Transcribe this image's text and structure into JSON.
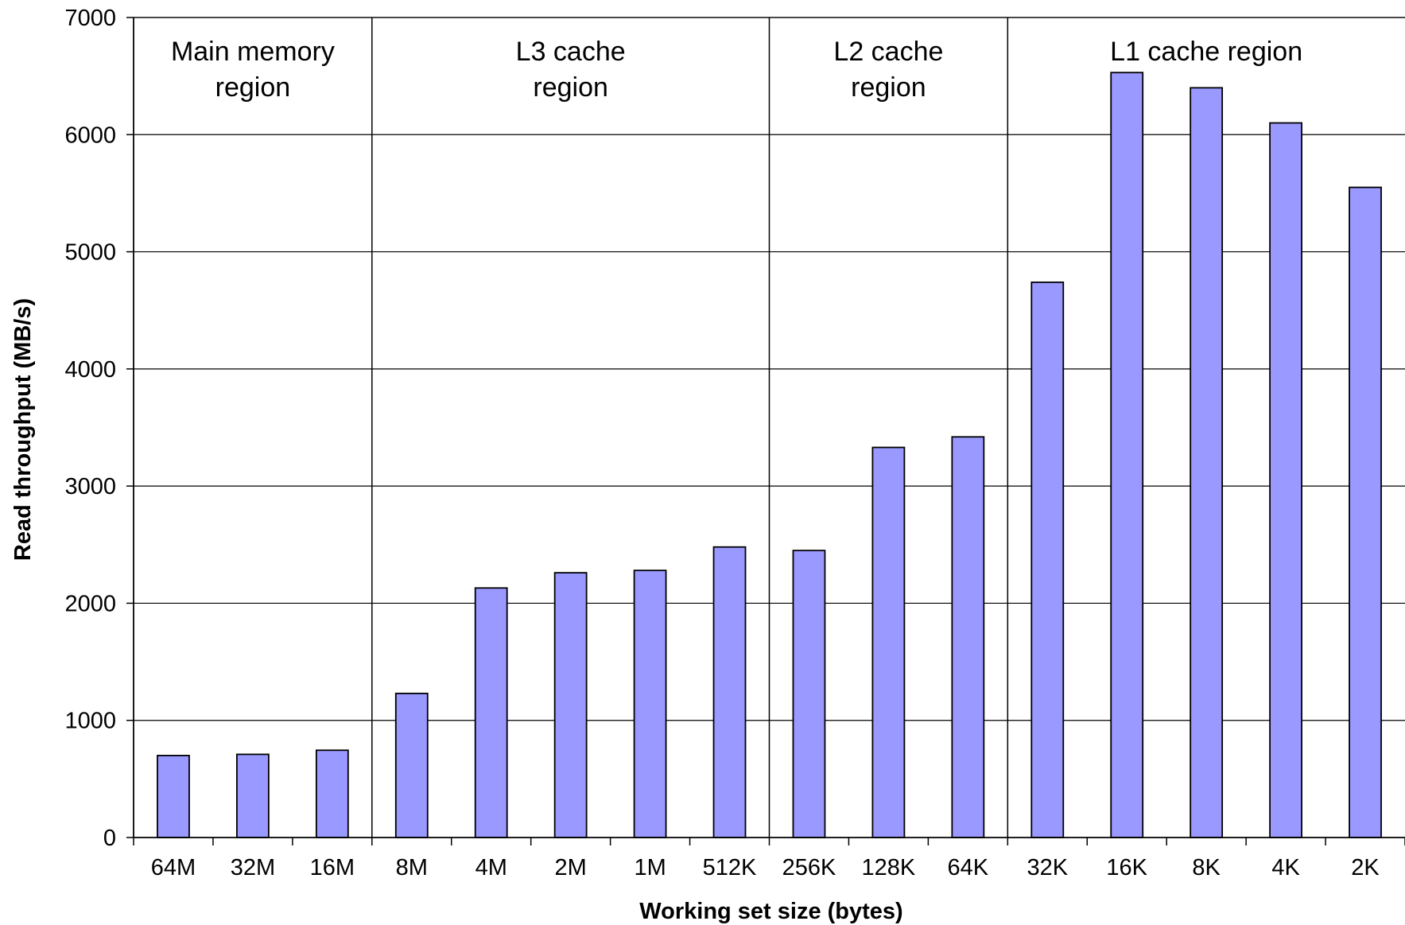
{
  "chart_data": {
    "type": "bar",
    "categories": [
      "64M",
      "32M",
      "16M",
      "8M",
      "4M",
      "2M",
      "1M",
      "512K",
      "256K",
      "128K",
      "64K",
      "32K",
      "16K",
      "8K",
      "4K",
      "2K"
    ],
    "values": [
      700,
      710,
      745,
      1230,
      2130,
      2260,
      2280,
      2480,
      2450,
      3330,
      3420,
      4740,
      6530,
      6400,
      6100,
      5550
    ],
    "xlabel": "Working set size (bytes)",
    "ylabel": "Read throughput (MB/s)",
    "ylim": [
      0,
      7000
    ],
    "yticks": [
      "0",
      "1000",
      "2000",
      "3000",
      "4000",
      "5000",
      "6000",
      "7000"
    ],
    "grid": "horizontal",
    "bar_color": "#9999ff",
    "regions": [
      {
        "lines": [
          "Main memory",
          "region"
        ],
        "start": 0,
        "end": 3
      },
      {
        "lines": [
          "L3 cache",
          "region"
        ],
        "start": 3,
        "end": 8
      },
      {
        "lines": [
          "L2 cache",
          "region"
        ],
        "start": 8,
        "end": 11
      },
      {
        "lines": [
          "L1 cache region"
        ],
        "start": 11,
        "end": 16
      }
    ]
  }
}
